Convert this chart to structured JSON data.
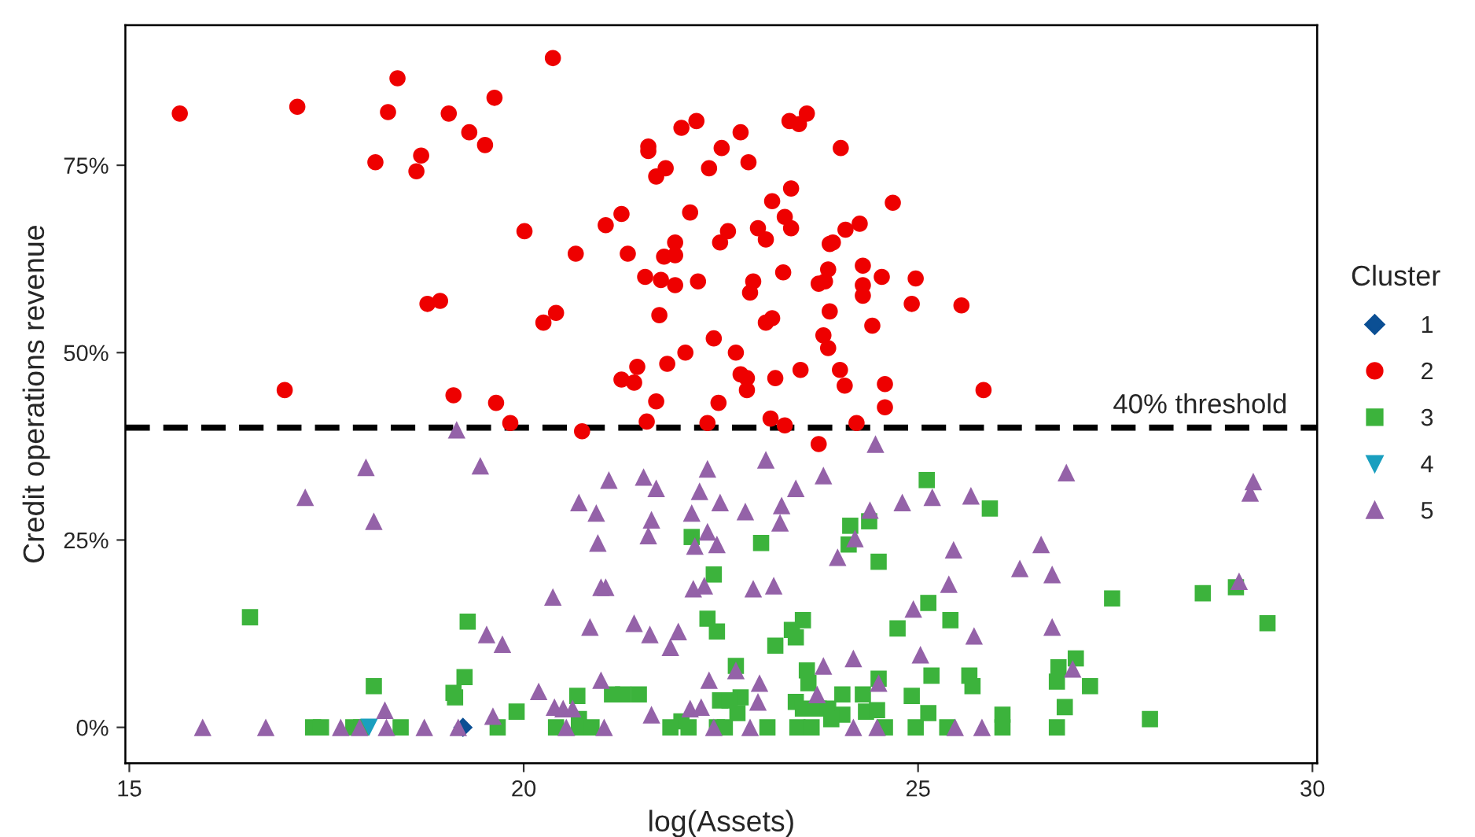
{
  "chart_data": {
    "type": "scatter",
    "xlabel": "log(Assets)",
    "ylabel": "Credit operations revenue",
    "legend_title": "Cluster",
    "legend": "right",
    "grid": false,
    "xlim": [
      14.95,
      30.06
    ],
    "xticks": [
      15,
      20,
      25,
      30
    ],
    "ylim": [
      -4.8,
      93.7
    ],
    "yticks": [
      {
        "value": 0,
        "label": "0%"
      },
      {
        "value": 25,
        "label": "25%"
      },
      {
        "value": 50,
        "label": "50%"
      },
      {
        "value": 75,
        "label": "75%"
      }
    ],
    "ref_lines": [
      {
        "axis": "y",
        "value": 40,
        "label": "40% threshold",
        "color": "#000000",
        "line_style": "dashed"
      }
    ],
    "series": [
      {
        "name": "1",
        "color": "#0b4f94",
        "marker": "diamond",
        "x": [
          19.23
        ],
        "values": [
          0
        ]
      },
      {
        "name": "2",
        "color": "#ee0000",
        "marker": "circle",
        "x": [
          15.64,
          17.13,
          18.4,
          18.28,
          19.05,
          19.63,
          19.31,
          19.51,
          20.37,
          18.12,
          18.7,
          18.64,
          21.58,
          21.58,
          22.0,
          22.19,
          22.51,
          21.8,
          21.68,
          22.35,
          20.01,
          21.04,
          21.24,
          22.11,
          21.92,
          21.78,
          21.92,
          22.49,
          22.59,
          20.66,
          21.32,
          21.54,
          21.74,
          21.92,
          22.21,
          18.78,
          18.94,
          20.25,
          20.41,
          21.72,
          22.41,
          22.05,
          21.82,
          21.44,
          21.24,
          21.4,
          16.97,
          19.11,
          19.65,
          21.68,
          22.47,
          19.83,
          21.56,
          22.33,
          20.74,
          22.75,
          22.85,
          23.37,
          23.49,
          23.59,
          24.02,
          23.39,
          23.15,
          23.31,
          23.39,
          24.68,
          22.97,
          23.07,
          24.26,
          24.08,
          23.88,
          23.92,
          24.3,
          23.86,
          23.29,
          22.91,
          22.87,
          23.74,
          23.82,
          24.3,
          24.3,
          24.54,
          24.97,
          24.92,
          25.55,
          23.88,
          23.07,
          23.15,
          24.42,
          23.8,
          23.86,
          22.69,
          22.75,
          22.83,
          22.83,
          23.19,
          23.51,
          24.01,
          24.07,
          24.58,
          24.58,
          25.83,
          23.13,
          23.31,
          24.22,
          23.74
        ],
        "values": [
          81.9,
          82.8,
          86.6,
          82.1,
          81.9,
          84.0,
          79.4,
          77.7,
          89.3,
          75.4,
          76.3,
          74.2,
          77.5,
          76.9,
          80.0,
          80.9,
          77.3,
          74.6,
          73.5,
          74.6,
          66.2,
          67.0,
          68.5,
          68.7,
          64.7,
          62.8,
          63.0,
          64.7,
          66.2,
          63.2,
          63.2,
          60.1,
          59.7,
          59.0,
          59.5,
          56.5,
          56.9,
          54.0,
          55.3,
          55.0,
          51.9,
          50.0,
          48.5,
          48.1,
          46.4,
          46.0,
          45.0,
          44.3,
          43.3,
          43.5,
          43.3,
          40.6,
          40.8,
          40.6,
          39.5,
          79.4,
          75.4,
          80.9,
          80.5,
          81.9,
          77.3,
          71.9,
          70.2,
          68.1,
          66.6,
          70.0,
          66.6,
          65.1,
          67.2,
          66.4,
          64.5,
          64.7,
          61.6,
          61.1,
          60.7,
          59.5,
          58.0,
          59.2,
          59.5,
          59.0,
          57.6,
          60.1,
          59.9,
          56.5,
          56.3,
          55.5,
          54.0,
          54.6,
          53.6,
          52.3,
          50.6,
          50.0,
          47.1,
          46.6,
          45.0,
          46.6,
          47.7,
          47.7,
          45.6,
          45.8,
          42.7,
          45.0,
          41.2,
          40.3,
          40.6,
          37.8
        ]
      },
      {
        "name": "3",
        "color": "#3cb33c",
        "marker": "square",
        "x": [
          16.53,
          19.29,
          18.1,
          19.25,
          19.11,
          19.13,
          19.91,
          20.68,
          21.12,
          21.26,
          21.46,
          20.7,
          22.13,
          22.41,
          22.33,
          22.45,
          22.49,
          22.0,
          17.33,
          17.43,
          17.84,
          17.94,
          18.44,
          19.67,
          20.41,
          20.7,
          20.86,
          21.86,
          22.09,
          22.45,
          25.11,
          25.91,
          24.14,
          24.38,
          24.12,
          23.01,
          24.5,
          27.46,
          28.61,
          29.03,
          29.43,
          25.13,
          24.74,
          25.41,
          23.54,
          23.4,
          23.45,
          23.19,
          22.69,
          23.59,
          23.61,
          24.5,
          25.17,
          25.65,
          25.69,
          26.78,
          27.0,
          26.76,
          27.18,
          26.86,
          27.94,
          26.76,
          22.75,
          22.61,
          22.71,
          23.45,
          23.54,
          23.74,
          23.86,
          24.04,
          24.3,
          24.04,
          23.9,
          24.34,
          24.48,
          24.92,
          25.13,
          26.07,
          22.55,
          23.09,
          23.47,
          23.65,
          24.58,
          24.97,
          25.37,
          26.07
        ],
        "values": [
          14.7,
          14.1,
          5.5,
          6.7,
          4.6,
          4.0,
          2.1,
          4.2,
          4.4,
          4.4,
          4.4,
          1.1,
          25.4,
          20.4,
          14.5,
          12.8,
          3.6,
          0.8,
          0,
          0,
          0,
          0,
          0,
          0,
          0,
          0,
          0,
          0,
          0,
          0,
          33.0,
          29.2,
          26.9,
          27.5,
          24.4,
          24.6,
          22.1,
          17.2,
          17.9,
          18.7,
          13.9,
          16.6,
          13.2,
          14.3,
          14.3,
          13.0,
          12.0,
          10.9,
          8.2,
          7.6,
          5.9,
          6.5,
          6.9,
          6.9,
          5.5,
          8.0,
          9.2,
          6.1,
          5.5,
          2.7,
          1.1,
          0,
          4.0,
          3.6,
          1.9,
          3.4,
          2.5,
          2.5,
          2.5,
          4.4,
          4.4,
          1.7,
          1.1,
          2.1,
          2.3,
          4.2,
          1.9,
          1.7,
          0,
          0,
          0,
          0,
          0,
          0,
          0,
          0
        ]
      },
      {
        "name": "4",
        "color": "#1a9fbf",
        "marker": "triangle_down",
        "x": [
          18.04
        ],
        "values": [
          0
        ]
      },
      {
        "name": "5",
        "color": "#9462a8",
        "marker": "triangle",
        "x": [
          19.15,
          18.0,
          19.45,
          17.23,
          18.1,
          21.08,
          21.52,
          21.68,
          22.33,
          22.23,
          22.49,
          20.7,
          20.92,
          21.62,
          21.58,
          22.13,
          20.94,
          22.33,
          22.17,
          22.45,
          20.98,
          21.04,
          20.37,
          22.15,
          22.29,
          19.53,
          19.73,
          20.84,
          21.4,
          21.6,
          21.96,
          21.86,
          20.19,
          20.98,
          22.35,
          20.39,
          20.5,
          20.62,
          21.62,
          22.11,
          22.25,
          18.24,
          19.61,
          15.93,
          16.73,
          17.68,
          17.92,
          18.26,
          18.74,
          19.17,
          20.54,
          21.02,
          22.41,
          24.46,
          23.07,
          23.8,
          23.45,
          22.81,
          23.27,
          23.25,
          24.39,
          24.8,
          25.18,
          25.67,
          26.88,
          29.25,
          29.21,
          24.2,
          23.98,
          25.45,
          26.56,
          26.29,
          26.7,
          22.91,
          23.17,
          25.39,
          29.07,
          24.94,
          25.71,
          26.7,
          25.03,
          24.18,
          23.8,
          22.69,
          26.96,
          22.99,
          24.5,
          22.97,
          23.72,
          22.87,
          24.18,
          24.48,
          25.47,
          25.81
        ],
        "values": [
          39.7,
          34.7,
          34.9,
          30.7,
          27.5,
          33.0,
          33.4,
          31.9,
          34.5,
          31.5,
          30.0,
          30.0,
          28.6,
          27.7,
          25.6,
          28.6,
          24.6,
          26.1,
          24.2,
          24.4,
          18.7,
          18.7,
          17.4,
          18.5,
          18.9,
          12.4,
          11.1,
          13.4,
          13.9,
          12.4,
          12.8,
          10.7,
          4.8,
          6.3,
          6.3,
          2.7,
          2.5,
          2.5,
          1.7,
          2.5,
          2.7,
          2.3,
          1.5,
          0,
          0,
          0,
          0,
          0,
          0,
          0,
          0,
          0,
          0,
          37.8,
          35.7,
          33.6,
          31.9,
          28.8,
          29.6,
          27.3,
          29.0,
          30.0,
          30.7,
          30.9,
          34.0,
          32.8,
          31.3,
          25.2,
          22.7,
          23.7,
          24.4,
          21.2,
          20.4,
          18.5,
          18.9,
          19.1,
          19.5,
          15.8,
          12.2,
          13.4,
          9.7,
          9.2,
          8.2,
          7.6,
          7.8,
          5.9,
          5.9,
          3.4,
          4.4,
          0,
          0,
          0,
          0,
          0
        ]
      }
    ]
  }
}
